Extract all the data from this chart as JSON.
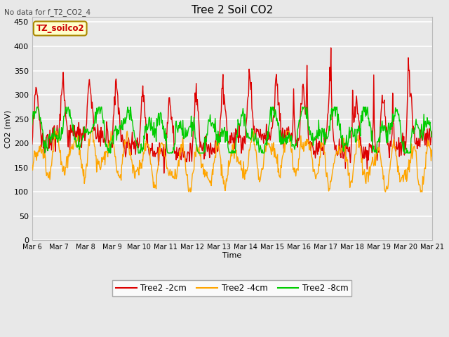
{
  "title": "Tree 2 Soil CO2",
  "subtitle": "No data for f_T2_CO2_4",
  "xlabel": "Time",
  "ylabel": "CO2 (mV)",
  "ylim": [
    0,
    460
  ],
  "yticks": [
    0,
    50,
    100,
    150,
    200,
    250,
    300,
    350,
    400,
    450
  ],
  "xtick_labels": [
    "Mar 6",
    "Mar 7",
    "Mar 8",
    "Mar 9",
    "Mar 10",
    "Mar 11",
    "Mar 12",
    "Mar 13",
    "Mar 14",
    "Mar 15",
    "Mar 16",
    "Mar 17",
    "Mar 18",
    "Mar 19",
    "Mar 20",
    "Mar 21"
  ],
  "legend_label_2cm": "Tree2 -2cm",
  "legend_label_4cm": "Tree2 -4cm",
  "legend_label_8cm": "Tree2 -8cm",
  "color_2cm": "#dd0000",
  "color_4cm": "#ffa500",
  "color_8cm": "#00cc00",
  "annotation_text": "TZ_soilco2",
  "annotation_bg": "#ffffcc",
  "annotation_border": "#aa8800",
  "fig_bg": "#e8e8e8",
  "plot_bg": "#e8e8e8",
  "grid_color": "#ffffff",
  "n_days": 15,
  "pts_per_day": 48
}
